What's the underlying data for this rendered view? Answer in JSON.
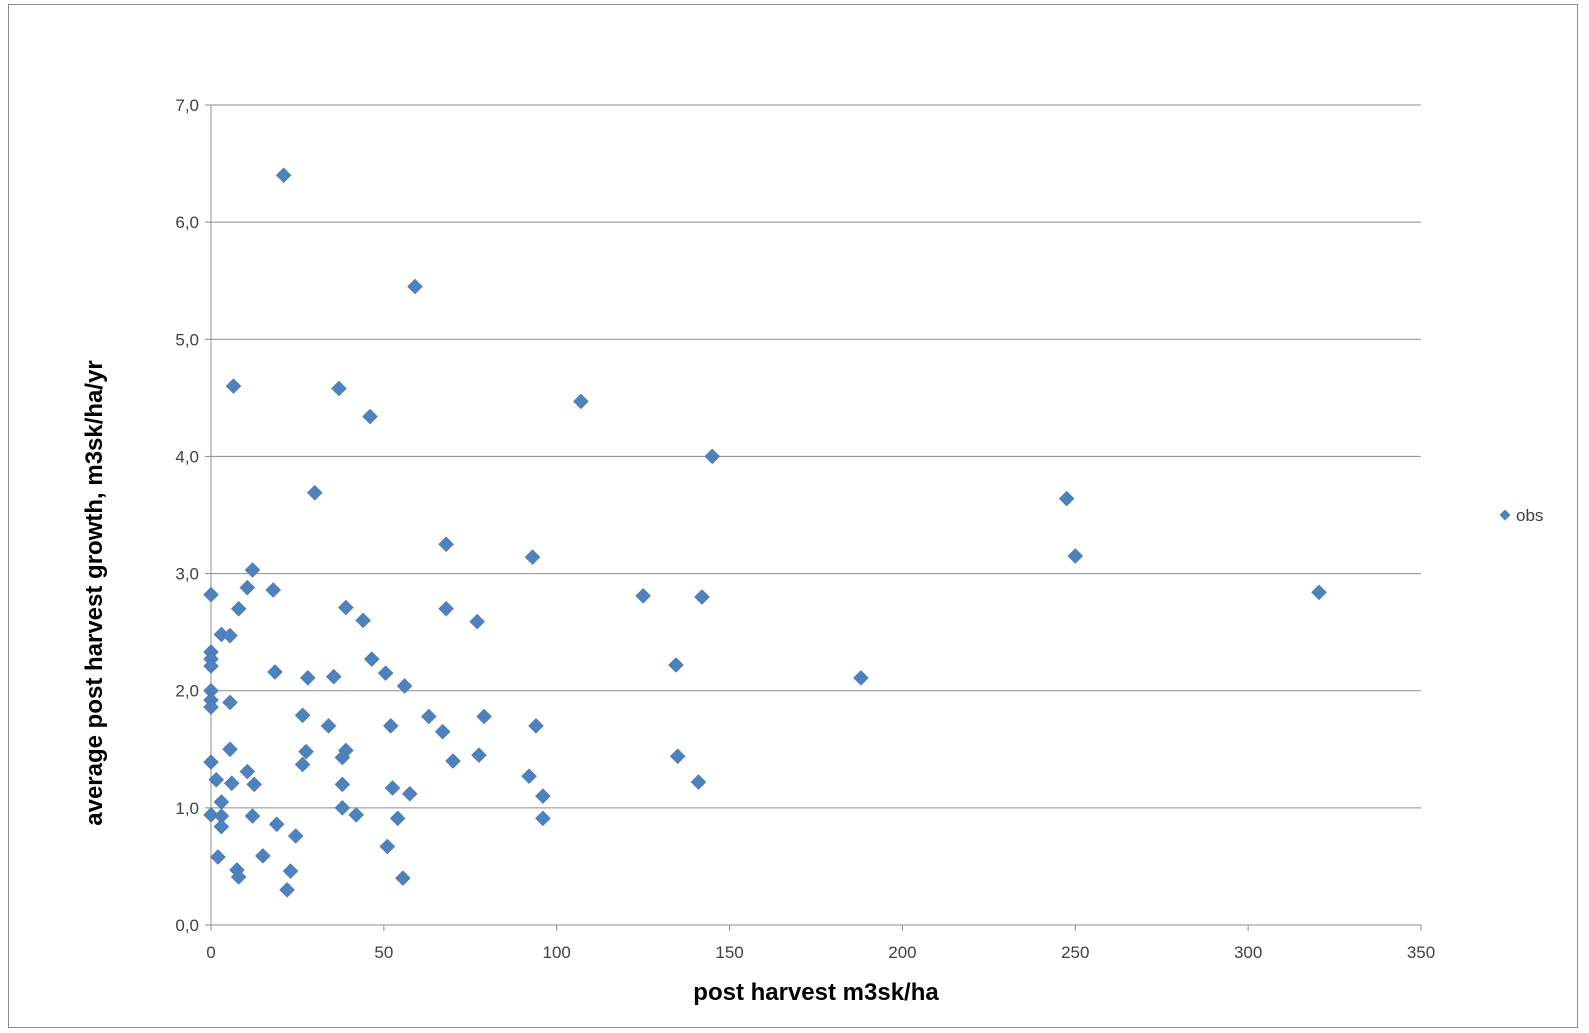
{
  "chart_data": {
    "type": "scatter",
    "title": "",
    "xlabel": "post harvest m3sk/ha",
    "ylabel": "average post harvest growth, m3sk/ha/yr",
    "xlim": [
      0,
      350
    ],
    "ylim": [
      0,
      7
    ],
    "x_ticks": [
      "0",
      "50",
      "100",
      "150",
      "200",
      "250",
      "300",
      "350"
    ],
    "y_ticks": [
      "0,0",
      "1,0",
      "2,0",
      "3,0",
      "4,0",
      "5,0",
      "6,0",
      "7,0"
    ],
    "grid": "horizontal",
    "legend_position": "right",
    "marker": "diamond",
    "color": "#4f81bd",
    "series": [
      {
        "name": "obs",
        "points": [
          [
            21,
            6.4
          ],
          [
            59,
            5.45
          ],
          [
            6.5,
            4.6
          ],
          [
            37,
            4.58
          ],
          [
            46,
            4.34
          ],
          [
            107,
            4.47
          ],
          [
            145,
            4.0
          ],
          [
            30,
            3.69
          ],
          [
            68,
            3.25
          ],
          [
            93,
            3.14
          ],
          [
            12,
            3.03
          ],
          [
            10.5,
            2.88
          ],
          [
            18,
            2.86
          ],
          [
            0,
            2.82
          ],
          [
            8,
            2.7
          ],
          [
            39,
            2.71
          ],
          [
            68,
            2.7
          ],
          [
            44,
            2.6
          ],
          [
            77,
            2.59
          ],
          [
            125,
            2.81
          ],
          [
            142,
            2.8
          ],
          [
            3,
            2.48
          ],
          [
            5.5,
            2.47
          ],
          [
            0,
            2.33
          ],
          [
            0,
            2.27
          ],
          [
            0,
            2.21
          ],
          [
            46.5,
            2.27
          ],
          [
            134.5,
            2.22
          ],
          [
            18.5,
            2.16
          ],
          [
            28,
            2.11
          ],
          [
            35.5,
            2.12
          ],
          [
            50.5,
            2.15
          ],
          [
            56,
            2.04
          ],
          [
            188,
            2.11
          ],
          [
            0,
            2.0
          ],
          [
            0,
            1.92
          ],
          [
            0,
            1.86
          ],
          [
            5.5,
            1.9
          ],
          [
            26.5,
            1.79
          ],
          [
            34,
            1.7
          ],
          [
            52,
            1.7
          ],
          [
            63,
            1.78
          ],
          [
            67,
            1.65
          ],
          [
            79,
            1.78
          ],
          [
            94,
            1.7
          ],
          [
            5.5,
            1.5
          ],
          [
            27.5,
            1.48
          ],
          [
            39,
            1.49
          ],
          [
            38,
            1.43
          ],
          [
            26.5,
            1.37
          ],
          [
            0,
            1.39
          ],
          [
            70,
            1.4
          ],
          [
            77.5,
            1.45
          ],
          [
            135,
            1.44
          ],
          [
            10.5,
            1.31
          ],
          [
            92,
            1.27
          ],
          [
            1.5,
            1.24
          ],
          [
            6,
            1.21
          ],
          [
            12.5,
            1.2
          ],
          [
            38,
            1.2
          ],
          [
            52.5,
            1.17
          ],
          [
            57.5,
            1.12
          ],
          [
            96,
            1.1
          ],
          [
            141,
            1.22
          ],
          [
            3,
            1.05
          ],
          [
            38,
            1.0
          ],
          [
            0,
            0.94
          ],
          [
            3,
            0.93
          ],
          [
            12,
            0.93
          ],
          [
            42,
            0.94
          ],
          [
            54,
            0.91
          ],
          [
            96,
            0.91
          ],
          [
            3,
            0.84
          ],
          [
            19,
            0.86
          ],
          [
            24.5,
            0.76
          ],
          [
            51,
            0.67
          ],
          [
            2,
            0.58
          ],
          [
            15,
            0.59
          ],
          [
            7.5,
            0.47
          ],
          [
            8,
            0.41
          ],
          [
            23,
            0.46
          ],
          [
            55.5,
            0.4
          ],
          [
            22,
            0.3
          ],
          [
            247.5,
            3.64
          ],
          [
            250,
            3.15
          ],
          [
            320.5,
            2.84
          ]
        ]
      }
    ]
  }
}
